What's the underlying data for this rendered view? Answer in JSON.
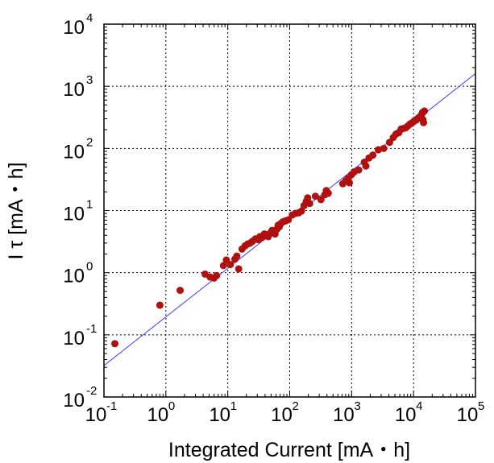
{
  "chart_data": {
    "type": "scatter",
    "title": "",
    "xlabel": "Integrated Current [mA・h]",
    "ylabel": "I τ [mA・h]",
    "xscale": "log",
    "yscale": "log",
    "xlim": [
      0.1,
      100000
    ],
    "ylim": [
      0.01,
      10000
    ],
    "grid": true,
    "x_ticks": [
      {
        "base": "10",
        "exp": "-1"
      },
      {
        "base": "10",
        "exp": "0"
      },
      {
        "base": "10",
        "exp": "1"
      },
      {
        "base": "10",
        "exp": "2"
      },
      {
        "base": "10",
        "exp": "3"
      },
      {
        "base": "10",
        "exp": "4"
      },
      {
        "base": "10",
        "exp": "5"
      }
    ],
    "y_ticks": [
      {
        "base": "10",
        "exp": "-2"
      },
      {
        "base": "10",
        "exp": "-1"
      },
      {
        "base": "10",
        "exp": "0"
      },
      {
        "base": "10",
        "exp": "1"
      },
      {
        "base": "10",
        "exp": "2"
      },
      {
        "base": "10",
        "exp": "3"
      },
      {
        "base": "10",
        "exp": "4"
      }
    ],
    "marker_color": "#b01010",
    "fit_color": "#3a3aff",
    "series": [
      {
        "type": "scatter",
        "points": [
          [
            0.15,
            0.072
          ],
          [
            0.8,
            0.3
          ],
          [
            1.7,
            0.52
          ],
          [
            4.3,
            0.95
          ],
          [
            5.2,
            0.85
          ],
          [
            6,
            0.82
          ],
          [
            6.6,
            0.9
          ],
          [
            8.5,
            1.3
          ],
          [
            9.5,
            1.6
          ],
          [
            11,
            1.35
          ],
          [
            13,
            1.65
          ],
          [
            14,
            1.85
          ],
          [
            15,
            1.15
          ],
          [
            17,
            2.4
          ],
          [
            19,
            2.7
          ],
          [
            21,
            2.9
          ],
          [
            23,
            3.0
          ],
          [
            25,
            3.2
          ],
          [
            28,
            3.5
          ],
          [
            31,
            3.4
          ],
          [
            33,
            3.8
          ],
          [
            36,
            3.7
          ],
          [
            39,
            4.2
          ],
          [
            42,
            4.0
          ],
          [
            45,
            3.8
          ],
          [
            48,
            4.3
          ],
          [
            52,
            4.8
          ],
          [
            55,
            4.4
          ],
          [
            58,
            4.2
          ],
          [
            62,
            5.0
          ],
          [
            65,
            5.8
          ],
          [
            68,
            5.5
          ],
          [
            72,
            6.2
          ],
          [
            78,
            6.6
          ],
          [
            85,
            6.8
          ],
          [
            95,
            7.1
          ],
          [
            110,
            8.5
          ],
          [
            125,
            9.0
          ],
          [
            140,
            9.2
          ],
          [
            155,
            9.8
          ],
          [
            170,
            12
          ],
          [
            185,
            14
          ],
          [
            195,
            16
          ],
          [
            210,
            13
          ],
          [
            260,
            17
          ],
          [
            320,
            15
          ],
          [
            370,
            18
          ],
          [
            390,
            21
          ],
          [
            420,
            19
          ],
          [
            720,
            27
          ],
          [
            800,
            30
          ],
          [
            880,
            33
          ],
          [
            920,
            28
          ],
          [
            1000,
            38
          ],
          [
            1100,
            42
          ],
          [
            1300,
            45
          ],
          [
            1600,
            60
          ],
          [
            1700,
            52
          ],
          [
            1900,
            70
          ],
          [
            2200,
            78
          ],
          [
            2700,
            95
          ],
          [
            3300,
            100
          ],
          [
            4100,
            125
          ],
          [
            4700,
            150
          ],
          [
            5200,
            170
          ],
          [
            5800,
            180
          ],
          [
            6300,
            205
          ],
          [
            6900,
            210
          ],
          [
            7500,
            215
          ],
          [
            8100,
            230
          ],
          [
            8700,
            245
          ],
          [
            9300,
            255
          ],
          [
            10000,
            270
          ],
          [
            10500,
            280
          ],
          [
            11000,
            285
          ],
          [
            11500,
            300
          ],
          [
            12000,
            310
          ],
          [
            12500,
            315
          ],
          [
            13000,
            330
          ],
          [
            13500,
            350
          ],
          [
            14000,
            380
          ],
          [
            14200,
            290
          ],
          [
            14500,
            260
          ],
          [
            15000,
            400
          ]
        ]
      },
      {
        "type": "line",
        "points": [
          [
            0.1,
            0.032
          ],
          [
            100000,
            1600
          ]
        ]
      }
    ]
  }
}
